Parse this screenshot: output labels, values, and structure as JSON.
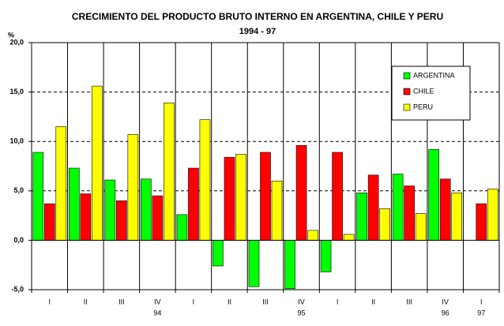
{
  "chart_data": {
    "type": "bar",
    "title": "CRECIMIENTO DEL PRODUCTO BRUTO INTERNO EN ARGENTINA, CHILE Y PERU",
    "subtitle": "1994 - 97",
    "y_label": "%",
    "categories": [
      "I",
      "II",
      "III",
      "IV",
      "I",
      "II",
      "III",
      "IV",
      "I",
      "II",
      "III",
      "IV",
      "I"
    ],
    "year_labels": [
      null,
      null,
      null,
      "94",
      null,
      null,
      null,
      "95",
      null,
      null,
      null,
      "96",
      "97"
    ],
    "series": [
      {
        "name": "ARGENTINA",
        "color": "#00ff00",
        "values": [
          8.9,
          7.3,
          6.1,
          6.2,
          2.6,
          -2.6,
          -4.7,
          -4.9,
          -3.2,
          4.8,
          6.7,
          9.2,
          null
        ]
      },
      {
        "name": "CHILE",
        "color": "#ff0000",
        "values": [
          3.7,
          4.7,
          4.0,
          4.5,
          7.3,
          8.4,
          8.9,
          9.6,
          8.9,
          6.6,
          5.5,
          6.2,
          3.7
        ]
      },
      {
        "name": "PERU",
        "color": "#ffff00",
        "values": [
          11.5,
          15.6,
          10.7,
          13.9,
          12.2,
          8.7,
          6.0,
          1.0,
          0.6,
          3.2,
          2.7,
          4.8,
          5.2
        ]
      }
    ],
    "ylim": [
      -5,
      20
    ],
    "yticks": [
      {
        "value": -5,
        "label": "-5,0"
      },
      {
        "value": 0,
        "label": "0,0"
      },
      {
        "value": 5,
        "label": "5,0"
      },
      {
        "value": 10,
        "label": "10,0"
      },
      {
        "value": 15,
        "label": "15,0"
      },
      {
        "value": 20,
        "label": "20,0"
      }
    ],
    "grid": true,
    "legend": "upper right"
  }
}
